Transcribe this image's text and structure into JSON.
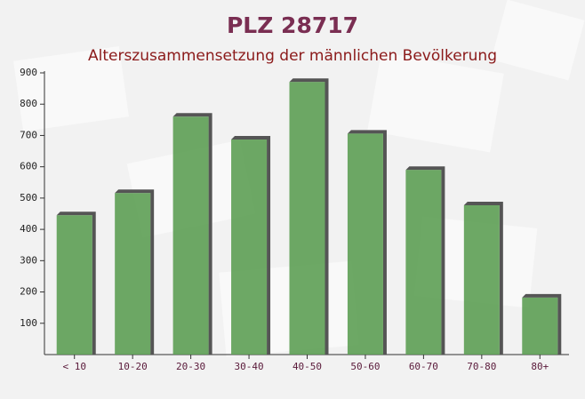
{
  "chart_data": {
    "type": "bar",
    "title": "PLZ 28717",
    "subtitle": "Alterszusammensetzung der männlichen Bevölkerung",
    "categories": [
      "< 10",
      "10-20",
      "20-30",
      "30-40",
      "40-50",
      "50-60",
      "60-70",
      "70-80",
      "80+"
    ],
    "values": [
      445,
      516,
      760,
      687,
      871,
      706,
      590,
      477,
      182
    ],
    "color": "#5d9e54",
    "ylim": [
      0,
      900
    ],
    "yticks": [
      100,
      200,
      300,
      400,
      500,
      600,
      700,
      800,
      900
    ]
  }
}
